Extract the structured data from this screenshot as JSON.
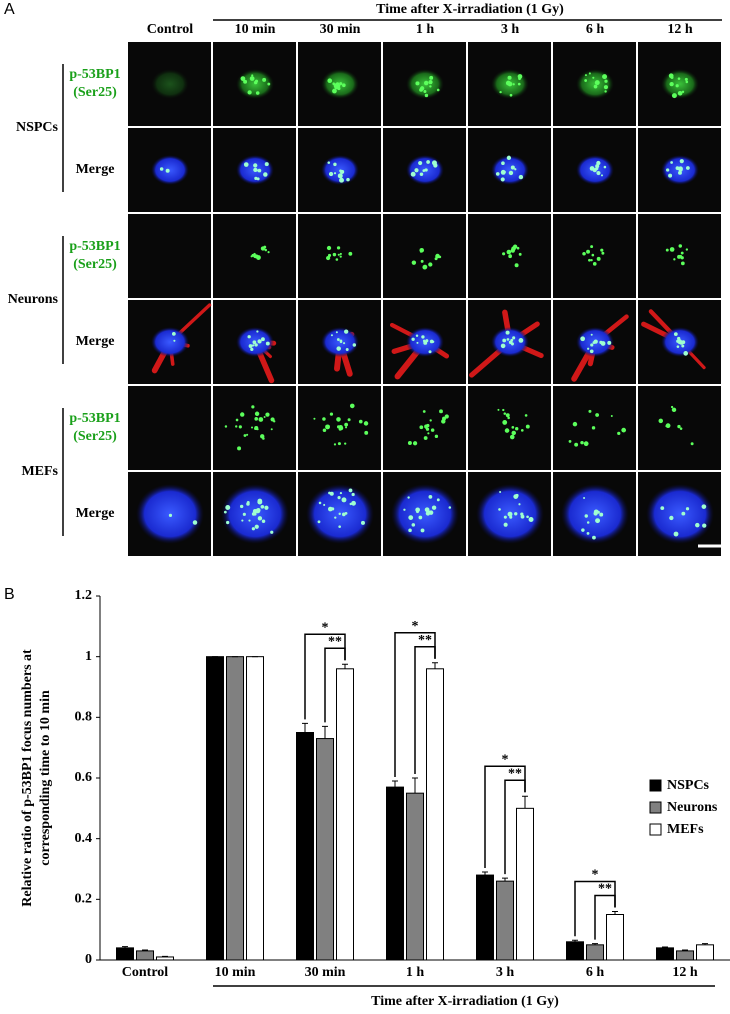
{
  "panel_a": {
    "label": "A",
    "header": "Time after X-irradiation (1 Gy)",
    "columns": [
      "Control",
      "10 min",
      "30 min",
      "1 h",
      "3 h",
      "6 h",
      "12 h"
    ],
    "groups": [
      {
        "name": "NSPCs",
        "rows": [
          [
            "p-53BP1",
            "(Ser25)"
          ],
          [
            "Merge"
          ]
        ]
      },
      {
        "name": "Neurons",
        "rows": [
          [
            "p-53BP1",
            "(Ser25)"
          ],
          [
            "Merge"
          ]
        ]
      },
      {
        "name": "MEFs",
        "rows": [
          [
            "p-53BP1",
            "(Ser25)"
          ],
          [
            "Merge"
          ]
        ]
      }
    ]
  },
  "chart_data": {
    "type": "bar",
    "panel_label": "B",
    "y_label": [
      "Relative ratio of p-53BP1 focus numbers at",
      "corresponding time to 10 min"
    ],
    "x_label": "Time after X-irradiation (1 Gy)",
    "categories": [
      "Control",
      "10 min",
      "30 min",
      "1 h",
      "3 h",
      "6 h",
      "12 h"
    ],
    "series": [
      {
        "name": "NSPCs",
        "color": "#000000",
        "values": [
          0.04,
          1,
          0.75,
          0.57,
          0.28,
          0.06,
          0.04
        ],
        "errors": [
          0.004,
          0,
          0.03,
          0.02,
          0.01,
          0.005,
          0.003
        ]
      },
      {
        "name": "Neurons",
        "color": "#808080",
        "values": [
          0.03,
          1,
          0.73,
          0.55,
          0.26,
          0.05,
          0.03
        ],
        "errors": [
          0.003,
          0,
          0.04,
          0.05,
          0.01,
          0.004,
          0.003
        ]
      },
      {
        "name": "MEFs",
        "color": "#ffffff",
        "values": [
          0.01,
          1,
          0.96,
          0.96,
          0.5,
          0.15,
          0.05
        ],
        "errors": [
          0.002,
          0,
          0.015,
          0.02,
          0.04,
          0.01,
          0.004
        ]
      }
    ],
    "ylim": [
      0,
      1.2
    ],
    "yticks": [
      0,
      0.2,
      0.4,
      0.6,
      0.8,
      1,
      1.2
    ],
    "grid": false,
    "legend": "right",
    "significance": [
      {
        "category": "30 min",
        "pairs": [
          {
            "from": "NSPCs",
            "to": "MEFs",
            "label": "*"
          },
          {
            "from": "Neurons",
            "to": "MEFs",
            "label": "**"
          }
        ]
      },
      {
        "category": "1 h",
        "pairs": [
          {
            "from": "NSPCs",
            "to": "MEFs",
            "label": "*"
          },
          {
            "from": "Neurons",
            "to": "MEFs",
            "label": "**"
          }
        ]
      },
      {
        "category": "3 h",
        "pairs": [
          {
            "from": "NSPCs",
            "to": "MEFs",
            "label": "*"
          },
          {
            "from": "Neurons",
            "to": "MEFs",
            "label": "**"
          }
        ]
      },
      {
        "category": "6 h",
        "pairs": [
          {
            "from": "NSPCs",
            "to": "MEFs",
            "label": "*"
          },
          {
            "from": "Neurons",
            "to": "MEFs",
            "label": "**"
          }
        ]
      }
    ]
  }
}
